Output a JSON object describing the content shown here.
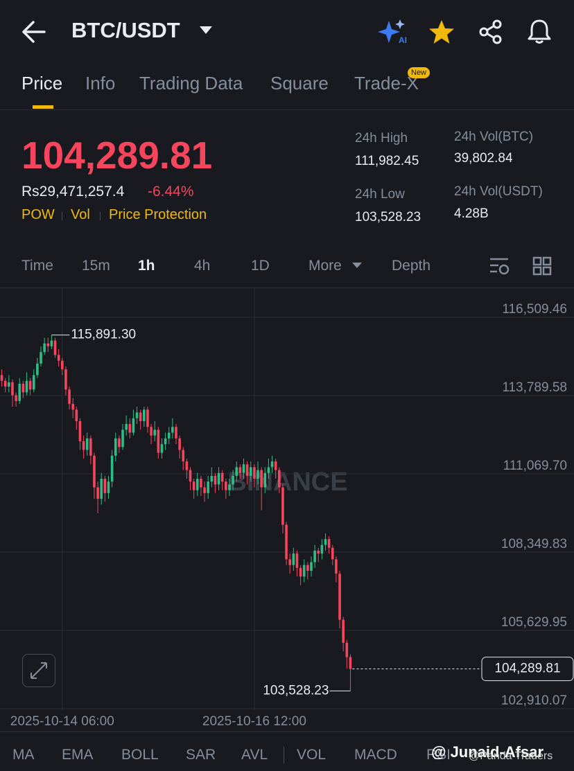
{
  "header": {
    "pair": "BTC/USDT"
  },
  "tabs": [
    "Price",
    "Info",
    "Trading Data",
    "Square",
    "Trade-X"
  ],
  "badge": "New",
  "ticker": {
    "price": "104,289.81",
    "fiat": "Rs29,471,257.4",
    "change": "-6.44%",
    "tags": [
      "POW",
      "Vol",
      "Price Protection"
    ],
    "stats": [
      {
        "label": "24h High",
        "value": "111,982.45"
      },
      {
        "label": "24h Vol(BTC)",
        "value": "39,802.84"
      },
      {
        "label": "24h Low",
        "value": "103,528.23"
      },
      {
        "label": "24h Vol(USDT)",
        "value": "4.28B"
      }
    ]
  },
  "intervals": [
    "Time",
    "15m",
    "1h",
    "4h",
    "1D",
    "More",
    "Depth"
  ],
  "chart_data": {
    "type": "candlestick",
    "categories": [
      null,
      null,
      null,
      null,
      null,
      null,
      null,
      null,
      null,
      null,
      null,
      null,
      null,
      null,
      null,
      null,
      null,
      "2025-10-14 06:00",
      null,
      null,
      null,
      null,
      null,
      null,
      null,
      null,
      null,
      null,
      null,
      null,
      null,
      null,
      null,
      null,
      null,
      null,
      null,
      null,
      null,
      null,
      null,
      null,
      null,
      null,
      null,
      null,
      null,
      null,
      null,
      null,
      null,
      null,
      null,
      null,
      null,
      null,
      null,
      null,
      null,
      null,
      null,
      null,
      null,
      null,
      null,
      null,
      null,
      null,
      null,
      null,
      null,
      "2025-10-16 12:00",
      null,
      null,
      null,
      null,
      null,
      null,
      null,
      null,
      null,
      null,
      null,
      null,
      null,
      null,
      null,
      null,
      null,
      null,
      null,
      null,
      null,
      null,
      null,
      null,
      null,
      null,
      null
    ],
    "open": [
      114500,
      114300,
      114100,
      114250,
      113800,
      113600,
      114200,
      113900,
      114300,
      114000,
      114500,
      114900,
      115300,
      115600,
      115500,
      115700,
      115200,
      115000,
      114700,
      114000,
      113500,
      113300,
      112900,
      112200,
      111900,
      112300,
      111700,
      110600,
      110200,
      110900,
      110400,
      110800,
      111700,
      112300,
      112000,
      112600,
      112800,
      112500,
      113000,
      113200,
      112900,
      113300,
      112700,
      112400,
      112600,
      111800,
      112100,
      112300,
      112500,
      112700,
      112300,
      111900,
      111500,
      111200,
      110800,
      110500,
      110900,
      110600,
      110400,
      110800,
      111000,
      110700,
      111100,
      110800,
      110500,
      110700,
      111000,
      111300,
      111100,
      111400,
      111000,
      111300,
      110900,
      111200,
      110600,
      111100,
      111300,
      111500,
      111200,
      110600,
      109300,
      108100,
      107900,
      108300,
      107800,
      107500,
      107900,
      107700,
      108000,
      108400,
      108300,
      108600,
      108800,
      108500,
      108100,
      107600,
      106000,
      105200,
      104700
    ],
    "high": [
      114700,
      114400,
      114500,
      114350,
      113900,
      114400,
      114300,
      114600,
      114400,
      114700,
      115100,
      115500,
      115800,
      115800,
      115891.3,
      115800,
      115400,
      115100,
      114800,
      114100,
      113700,
      113400,
      113000,
      112400,
      112500,
      112400,
      111800,
      110800,
      111100,
      111000,
      111000,
      111900,
      112500,
      112400,
      112800,
      113100,
      113000,
      113300,
      113400,
      113300,
      113400,
      113400,
      112800,
      112900,
      112700,
      112300,
      112500,
      112700,
      113000,
      112800,
      112400,
      112000,
      111600,
      111300,
      110900,
      111100,
      111000,
      110800,
      111000,
      111300,
      111100,
      111300,
      111200,
      110900,
      110900,
      111200,
      111500,
      111400,
      111600,
      111500,
      111500,
      111400,
      111500,
      111300,
      111300,
      111600,
      111700,
      111600,
      111300,
      110700,
      109400,
      108300,
      108500,
      108400,
      107900,
      108100,
      108000,
      108200,
      108600,
      108500,
      108800,
      109000,
      108900,
      108600,
      108200,
      107700,
      106100,
      105300,
      104800
    ],
    "low": [
      114100,
      113900,
      113900,
      113400,
      113400,
      113500,
      113700,
      113800,
      113800,
      113900,
      114400,
      114800,
      115200,
      115300,
      115400,
      115100,
      114800,
      114500,
      113800,
      113300,
      113000,
      112600,
      111900,
      111600,
      111700,
      111400,
      110200,
      109700,
      110000,
      110100,
      110200,
      110600,
      111500,
      111800,
      111900,
      112400,
      112300,
      112400,
      112800,
      112600,
      112700,
      112500,
      112100,
      112200,
      111600,
      111600,
      111900,
      112100,
      112300,
      112100,
      111600,
      111200,
      110900,
      110500,
      110200,
      110300,
      110300,
      110100,
      110200,
      110600,
      110400,
      110500,
      110500,
      110200,
      110300,
      110500,
      110800,
      110900,
      110900,
      110700,
      110800,
      110600,
      110700,
      109800,
      110400,
      110900,
      111100,
      110900,
      110400,
      109000,
      107900,
      107600,
      107700,
      107500,
      107200,
      107300,
      107400,
      107500,
      107800,
      108000,
      108100,
      108400,
      108300,
      107900,
      107300,
      105700,
      104900,
      104300,
      103528.23
    ],
    "close": [
      114300,
      114100,
      114250,
      113800,
      113600,
      114200,
      113900,
      114300,
      114000,
      114500,
      114900,
      115300,
      115600,
      115500,
      115700,
      115200,
      115000,
      114700,
      114000,
      113500,
      113300,
      112900,
      112200,
      111900,
      112300,
      111700,
      110600,
      110200,
      110900,
      110400,
      110800,
      111700,
      112300,
      112000,
      112600,
      112800,
      112500,
      113000,
      113200,
      112900,
      113300,
      112700,
      112400,
      112600,
      111800,
      112100,
      112300,
      112500,
      112700,
      112300,
      111900,
      111500,
      111200,
      110800,
      110500,
      110900,
      110600,
      110400,
      110800,
      111000,
      110700,
      111100,
      110800,
      110500,
      110700,
      111000,
      111300,
      111100,
      111400,
      111000,
      111300,
      110900,
      111200,
      110600,
      111100,
      111300,
      111500,
      111200,
      110600,
      109300,
      108100,
      107900,
      108300,
      107800,
      107500,
      107900,
      107700,
      108000,
      108400,
      108300,
      108600,
      108800,
      108500,
      108100,
      107600,
      106000,
      105200,
      104700,
      104289.81
    ],
    "up_color": "#2ebd85",
    "down_color": "#f6465d",
    "ylim": [
      102862,
      117544
    ],
    "yticks": [
      {
        "value": 116509.46,
        "label": "116,509.46"
      },
      {
        "value": 113789.58,
        "label": "113,789.58"
      },
      {
        "value": 111069.7,
        "label": "111,069.70"
      },
      {
        "value": 108349.83,
        "label": "108,349.83"
      },
      {
        "value": 105629.95,
        "label": "105,629.95"
      },
      {
        "value": 102910.07,
        "label": "102,910.07"
      }
    ],
    "grid": true,
    "annotations": {
      "high": {
        "value": 115891.3,
        "label": "115,891.30"
      },
      "low": {
        "value": 103528.23,
        "label": "103,528.23"
      },
      "last": {
        "value": 104289.81,
        "label": "104,289.81"
      }
    }
  },
  "indicators": [
    "MA",
    "EMA",
    "BOLL",
    "SAR",
    "AVL",
    "VOL",
    "MACD",
    "RSI"
  ],
  "watermarks": [
    "BINANCE",
    "@ Junaid-Afsar",
    "@Panda Traders"
  ]
}
